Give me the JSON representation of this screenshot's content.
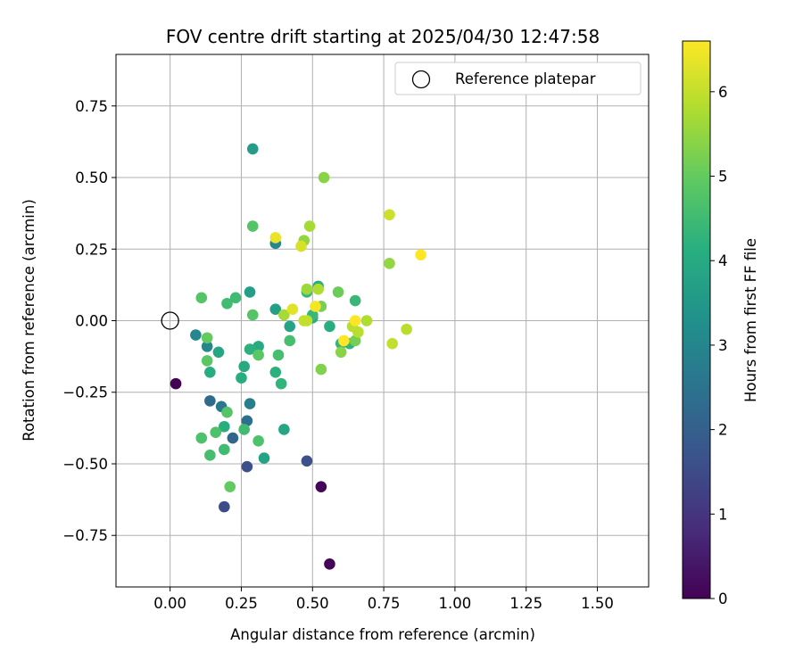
{
  "chart_data": {
    "type": "scatter",
    "title": "FOV centre drift starting at 2025/04/30 12:47:58",
    "xlabel": "Angular distance from reference (arcmin)",
    "ylabel": "Rotation from reference (arcmin)",
    "xlim": [
      -0.19,
      1.68
    ],
    "ylim": [
      -0.93,
      0.93
    ],
    "x_ticks": [
      0.0,
      0.25,
      0.5,
      0.75,
      1.0,
      1.25,
      1.5
    ],
    "x_tick_labels": [
      "0.00",
      "0.25",
      "0.50",
      "0.75",
      "1.00",
      "1.25",
      "1.50"
    ],
    "y_ticks": [
      -0.75,
      -0.5,
      -0.25,
      0.0,
      0.25,
      0.5,
      0.75
    ],
    "y_tick_labels": [
      "−0.75",
      "−0.50",
      "−0.25",
      "0.00",
      "0.25",
      "0.50",
      "0.75"
    ],
    "grid": true,
    "legend": {
      "placement": "top-right",
      "entries": [
        "Reference platepar"
      ]
    },
    "reference_point": {
      "x": 0.0,
      "y": 0.0,
      "label": "Reference platepar"
    },
    "colorbar": {
      "label": "Hours from first FF file",
      "range": [
        0,
        6.6
      ],
      "ticks": [
        0,
        1,
        2,
        3,
        4,
        5,
        6
      ],
      "tick_labels": [
        "0",
        "1",
        "2",
        "3",
        "4",
        "5",
        "6"
      ],
      "colormap": "viridis"
    },
    "points": [
      {
        "x": 0.02,
        "y": -0.22,
        "c": 0.0
      },
      {
        "x": 0.53,
        "y": -0.58,
        "c": 0.1
      },
      {
        "x": 0.56,
        "y": -0.85,
        "c": 0.1
      },
      {
        "x": 0.19,
        "y": -0.65,
        "c": 1.5
      },
      {
        "x": 0.48,
        "y": -0.49,
        "c": 1.6
      },
      {
        "x": 0.27,
        "y": -0.51,
        "c": 1.6
      },
      {
        "x": 0.22,
        "y": -0.41,
        "c": 2.2
      },
      {
        "x": 0.14,
        "y": -0.28,
        "c": 2.3
      },
      {
        "x": 0.27,
        "y": -0.35,
        "c": 2.4
      },
      {
        "x": 0.18,
        "y": -0.3,
        "c": 2.6
      },
      {
        "x": 0.28,
        "y": -0.29,
        "c": 2.8
      },
      {
        "x": 0.09,
        "y": -0.05,
        "c": 3.0
      },
      {
        "x": 0.13,
        "y": -0.09,
        "c": 3.0
      },
      {
        "x": 0.37,
        "y": 0.27,
        "c": 3.0
      },
      {
        "x": 0.29,
        "y": 0.6,
        "c": 3.6
      },
      {
        "x": 0.28,
        "y": 0.1,
        "c": 3.7
      },
      {
        "x": 0.37,
        "y": 0.04,
        "c": 3.7
      },
      {
        "x": 0.42,
        "y": -0.02,
        "c": 3.8
      },
      {
        "x": 0.33,
        "y": -0.48,
        "c": 3.8
      },
      {
        "x": 0.4,
        "y": -0.38,
        "c": 3.9
      },
      {
        "x": 0.17,
        "y": -0.11,
        "c": 3.9
      },
      {
        "x": 0.26,
        "y": -0.16,
        "c": 4.0
      },
      {
        "x": 0.31,
        "y": -0.09,
        "c": 4.0
      },
      {
        "x": 0.19,
        "y": -0.37,
        "c": 4.1
      },
      {
        "x": 0.5,
        "y": 0.01,
        "c": 4.1
      },
      {
        "x": 0.52,
        "y": 0.12,
        "c": 4.1
      },
      {
        "x": 0.56,
        "y": -0.02,
        "c": 4.1
      },
      {
        "x": 0.14,
        "y": -0.18,
        "c": 4.1
      },
      {
        "x": 0.25,
        "y": -0.2,
        "c": 4.1
      },
      {
        "x": 0.28,
        "y": -0.1,
        "c": 4.2
      },
      {
        "x": 0.37,
        "y": -0.18,
        "c": 4.2
      },
      {
        "x": 0.39,
        "y": -0.22,
        "c": 4.3
      },
      {
        "x": 0.6,
        "y": -0.08,
        "c": 4.3
      },
      {
        "x": 0.63,
        "y": -0.08,
        "c": 4.3
      },
      {
        "x": 0.5,
        "y": 0.02,
        "c": 4.4
      },
      {
        "x": 0.65,
        "y": 0.07,
        "c": 4.4
      },
      {
        "x": 0.48,
        "y": 0.1,
        "c": 4.4
      },
      {
        "x": 0.23,
        "y": 0.08,
        "c": 4.5
      },
      {
        "x": 0.2,
        "y": 0.06,
        "c": 4.5
      },
      {
        "x": 0.26,
        "y": -0.38,
        "c": 4.5
      },
      {
        "x": 0.19,
        "y": -0.45,
        "c": 4.5
      },
      {
        "x": 0.14,
        "y": -0.47,
        "c": 4.6
      },
      {
        "x": 0.42,
        "y": -0.07,
        "c": 4.6
      },
      {
        "x": 0.38,
        "y": -0.12,
        "c": 4.6
      },
      {
        "x": 0.31,
        "y": -0.42,
        "c": 4.7
      },
      {
        "x": 0.11,
        "y": -0.41,
        "c": 4.7
      },
      {
        "x": 0.16,
        "y": -0.39,
        "c": 4.7
      },
      {
        "x": 0.2,
        "y": -0.32,
        "c": 4.8
      },
      {
        "x": 0.29,
        "y": 0.33,
        "c": 4.8
      },
      {
        "x": 0.11,
        "y": 0.08,
        "c": 4.8
      },
      {
        "x": 0.29,
        "y": 0.02,
        "c": 4.8
      },
      {
        "x": 0.31,
        "y": -0.12,
        "c": 4.9
      },
      {
        "x": 0.13,
        "y": -0.14,
        "c": 4.9
      },
      {
        "x": 0.21,
        "y": -0.58,
        "c": 5.0
      },
      {
        "x": 0.13,
        "y": -0.06,
        "c": 5.0
      },
      {
        "x": 0.59,
        "y": 0.1,
        "c": 5.1
      },
      {
        "x": 0.53,
        "y": 0.05,
        "c": 5.2
      },
      {
        "x": 0.65,
        "y": -0.07,
        "c": 5.2
      },
      {
        "x": 0.53,
        "y": -0.17,
        "c": 5.3
      },
      {
        "x": 0.6,
        "y": -0.11,
        "c": 5.4
      },
      {
        "x": 0.54,
        "y": 0.5,
        "c": 5.4
      },
      {
        "x": 0.47,
        "y": 0.28,
        "c": 5.5
      },
      {
        "x": 0.77,
        "y": 0.2,
        "c": 5.5
      },
      {
        "x": 0.48,
        "y": 0.11,
        "c": 5.6
      },
      {
        "x": 0.49,
        "y": 0.33,
        "c": 5.7
      },
      {
        "x": 0.4,
        "y": 0.02,
        "c": 5.7
      },
      {
        "x": 0.52,
        "y": 0.11,
        "c": 5.8
      },
      {
        "x": 0.69,
        "y": 0.0,
        "c": 5.8
      },
      {
        "x": 0.83,
        "y": -0.03,
        "c": 5.9
      },
      {
        "x": 0.64,
        "y": -0.02,
        "c": 5.9
      },
      {
        "x": 0.66,
        "y": -0.04,
        "c": 5.9
      },
      {
        "x": 0.47,
        "y": 0.0,
        "c": 6.0
      },
      {
        "x": 0.48,
        "y": 0.0,
        "c": 6.0
      },
      {
        "x": 0.78,
        "y": -0.08,
        "c": 6.0
      },
      {
        "x": 0.77,
        "y": 0.37,
        "c": 6.1
      },
      {
        "x": 0.46,
        "y": 0.26,
        "c": 6.2
      },
      {
        "x": 0.43,
        "y": 0.04,
        "c": 6.3
      },
      {
        "x": 0.37,
        "y": 0.29,
        "c": 6.4
      },
      {
        "x": 0.51,
        "y": 0.05,
        "c": 6.5
      },
      {
        "x": 0.61,
        "y": -0.07,
        "c": 6.6
      },
      {
        "x": 0.65,
        "y": 0.0,
        "c": 6.6
      },
      {
        "x": 0.88,
        "y": 0.23,
        "c": 6.6
      }
    ]
  }
}
